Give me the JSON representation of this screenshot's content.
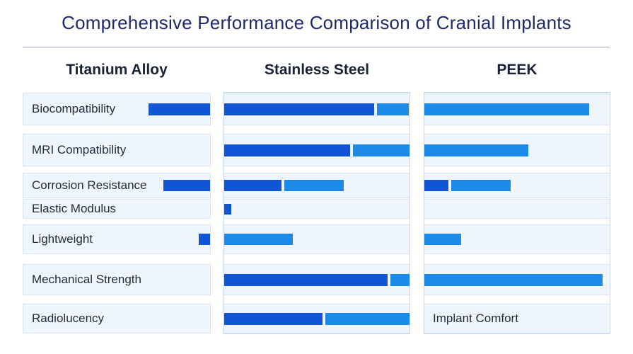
{
  "title": "Comprehensive Performance Comparison of Cranial Implants",
  "colors": {
    "dark_blue": "#1155d4",
    "light_blue": "#1e8ae8",
    "row_bg": "#eef5fc"
  },
  "chart_data": {
    "type": "bar",
    "layout": "horizontal stacked bars in three panels",
    "materials": [
      "Titanium Alloy",
      "Stainless Steel",
      "PEEK"
    ],
    "categories": [
      "Biocompatibility",
      "MRI Compatibility",
      "Corrosion Resistance",
      "Elastic Modulus",
      "Lightweight",
      "Mechanical Strength",
      "Radiolucency"
    ],
    "xlim": [
      0,
      100
    ],
    "grid": false,
    "legend": "none",
    "annotation": "Implant Comfort",
    "series": [
      {
        "material": "Titanium Alloy",
        "values": [
          {
            "dark": 33,
            "light": 0
          },
          {
            "dark": 0,
            "light": 0
          },
          {
            "dark": 25,
            "light": 0
          },
          {
            "dark": 0,
            "light": 0
          },
          {
            "dark": 6,
            "light": 0
          },
          {
            "dark": 0,
            "light": 0
          },
          {
            "dark": 0,
            "light": 0
          }
        ]
      },
      {
        "material": "Stainless Steel",
        "values": [
          {
            "dark": 81,
            "light": 17
          },
          {
            "dark": 68,
            "light": 32
          },
          {
            "dark": 31,
            "light": 32
          },
          {
            "dark": 4,
            "light": 0
          },
          {
            "dark": 0,
            "light": 37
          },
          {
            "dark": 88,
            "light": 12
          },
          {
            "dark": 53,
            "light": 47
          }
        ]
      },
      {
        "material": "PEEK",
        "values": [
          {
            "dark": 0,
            "light": 89
          },
          {
            "dark": 0,
            "light": 56
          },
          {
            "dark": 13,
            "light": 32
          },
          {
            "dark": 0,
            "light": 0
          },
          {
            "dark": 0,
            "light": 20
          },
          {
            "dark": 0,
            "light": 96
          },
          {
            "dark": 0,
            "light": 0
          }
        ]
      }
    ]
  }
}
